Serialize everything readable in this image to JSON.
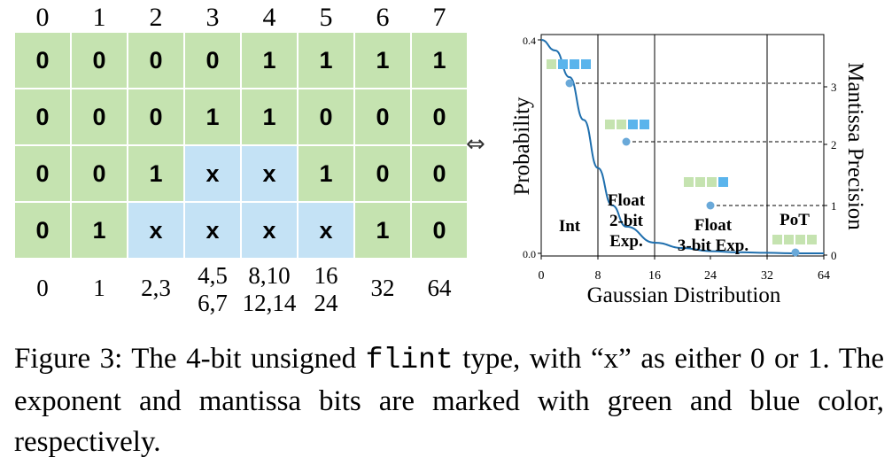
{
  "table": {
    "bit_positions": [
      "0",
      "1",
      "2",
      "3",
      "4",
      "5",
      "6",
      "7"
    ],
    "rows": [
      [
        {
          "t": "0",
          "c": "g"
        },
        {
          "t": "0",
          "c": "g"
        },
        {
          "t": "0",
          "c": "g"
        },
        {
          "t": "0",
          "c": "g"
        },
        {
          "t": "1",
          "c": "g"
        },
        {
          "t": "1",
          "c": "g"
        },
        {
          "t": "1",
          "c": "g"
        },
        {
          "t": "1",
          "c": "g"
        }
      ],
      [
        {
          "t": "0",
          "c": "g"
        },
        {
          "t": "0",
          "c": "g"
        },
        {
          "t": "0",
          "c": "g"
        },
        {
          "t": "1",
          "c": "g"
        },
        {
          "t": "1",
          "c": "g"
        },
        {
          "t": "0",
          "c": "g"
        },
        {
          "t": "0",
          "c": "g"
        },
        {
          "t": "0",
          "c": "g"
        }
      ],
      [
        {
          "t": "0",
          "c": "g"
        },
        {
          "t": "0",
          "c": "g"
        },
        {
          "t": "1",
          "c": "g"
        },
        {
          "t": "x",
          "c": "b"
        },
        {
          "t": "x",
          "c": "b"
        },
        {
          "t": "1",
          "c": "g"
        },
        {
          "t": "0",
          "c": "g"
        },
        {
          "t": "0",
          "c": "g"
        }
      ],
      [
        {
          "t": "0",
          "c": "g"
        },
        {
          "t": "1",
          "c": "g"
        },
        {
          "t": "x",
          "c": "b"
        },
        {
          "t": "x",
          "c": "b"
        },
        {
          "t": "x",
          "c": "b"
        },
        {
          "t": "x",
          "c": "b"
        },
        {
          "t": "1",
          "c": "g"
        },
        {
          "t": "0",
          "c": "g"
        }
      ]
    ],
    "values": [
      [
        "0"
      ],
      [
        "1"
      ],
      [
        "2,3"
      ],
      [
        "4,5",
        "6,7"
      ],
      [
        "8,10",
        "12,14"
      ],
      [
        "16",
        "24"
      ],
      [
        "32"
      ],
      [
        "64"
      ]
    ],
    "colors": {
      "exponent": "#c5e3b0",
      "mantissa": "#c4e2f5"
    }
  },
  "arrow": "⇔",
  "chart": {
    "x_label": "Gaussian Distribution",
    "y_label_left": "Probability",
    "y_label_right": "Mantissa Precision",
    "x_ticks": [
      "0",
      "8",
      "16",
      "24",
      "32",
      "64"
    ],
    "y_left_ticks": [
      "0.4",
      "0.0"
    ],
    "y_right_ticks": [
      "3",
      "2",
      "1",
      "0"
    ],
    "regions": [
      {
        "lines": [
          "Int"
        ]
      },
      {
        "lines": [
          "Float",
          "2-bit",
          "Exp."
        ]
      },
      {
        "lines": [
          "Float",
          "3-bit Exp."
        ]
      },
      {
        "lines": [
          "PoT"
        ]
      }
    ],
    "colors": {
      "curve": "#1f6fae",
      "point": "#6aa9d9",
      "exponent": "#c5e3b0",
      "mantissa": "#5ab4ec"
    }
  },
  "chart_data": {
    "type": "line",
    "xlabel": "Gaussian Distribution",
    "ylabel": "Probability",
    "y2label": "Mantissa Precision",
    "ylim": [
      0.0,
      0.4
    ],
    "y2lim": [
      0,
      3
    ],
    "x_tick_labels": [
      "0",
      "8",
      "16",
      "24",
      "32",
      "64"
    ],
    "curve": {
      "x": [
        0,
        2,
        4,
        6,
        8,
        10,
        12,
        16,
        20,
        24,
        28,
        32,
        48,
        64
      ],
      "y": [
        0.4,
        0.38,
        0.33,
        0.25,
        0.16,
        0.09,
        0.05,
        0.02,
        0.01,
        0.004,
        0.002,
        0.001,
        0.0,
        0.0
      ]
    },
    "precision_points": [
      {
        "region": "Int",
        "x": 4,
        "precision": 3,
        "exponent_bits": 1,
        "mantissa_bits": 3
      },
      {
        "region": "Float 2-bit Exp.",
        "x": 12,
        "precision": 2,
        "exponent_bits": 2,
        "mantissa_bits": 2
      },
      {
        "region": "Float 3-bit Exp.",
        "x": 24,
        "precision": 1,
        "exponent_bits": 3,
        "mantissa_bits": 1
      },
      {
        "region": "PoT",
        "x": 48,
        "precision": 0,
        "exponent_bits": 4,
        "mantissa_bits": 0
      }
    ]
  },
  "caption": {
    "before": "Figure 3: The 4-bit unsigned ",
    "code": "flint",
    "after": " type, with “x” as either 0 or 1. The exponent and mantissa bits are marked with green and blue color, respectively."
  }
}
